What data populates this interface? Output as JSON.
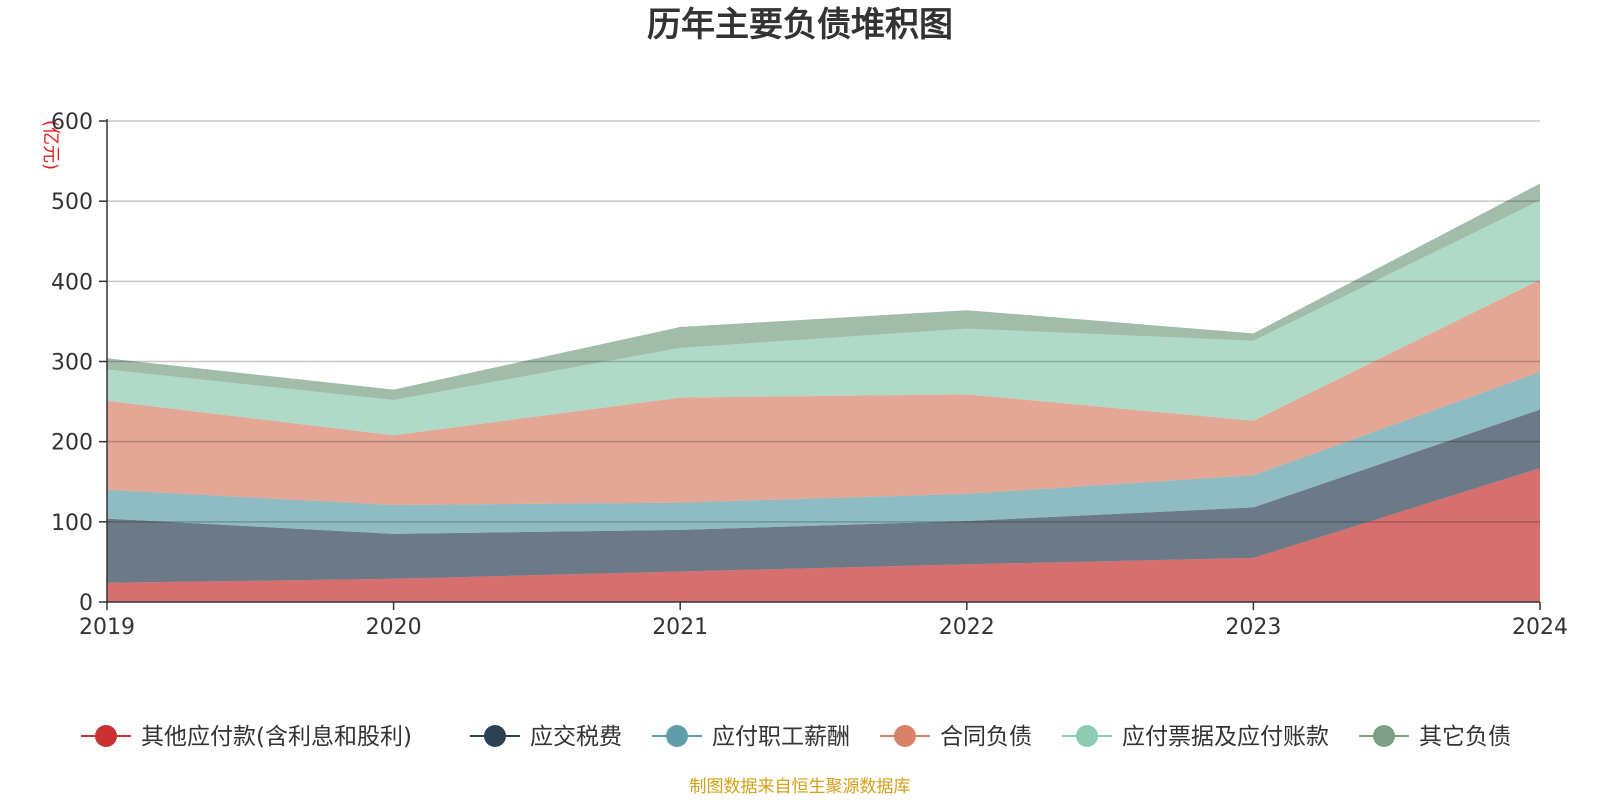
{
  "title": "历年主要负债堆积图",
  "source_note": "制图数据来自恒生聚源数据库",
  "chart_data": {
    "type": "area",
    "stacked": true,
    "title": "历年主要负债堆积图",
    "unit": "(亿元)",
    "categories": [
      "2019",
      "2020",
      "2021",
      "2022",
      "2023",
      "2024"
    ],
    "ylim": [
      0,
      600
    ],
    "yticks": [
      0,
      100,
      200,
      300,
      400,
      500,
      600
    ],
    "grid": true,
    "legend_position": "bottom",
    "series": [
      {
        "name": "其他应付款(含利息和股利)",
        "color": "#c83232",
        "values": [
          24,
          29,
          38,
          47,
          55,
          167
        ]
      },
      {
        "name": "应交税费",
        "color": "#2e4053",
        "values": [
          80,
          56,
          52,
          54,
          63,
          73
        ]
      },
      {
        "name": "应付职工薪酬",
        "color": "#5f9ea8",
        "values": [
          36,
          36,
          34,
          34,
          40,
          47
        ]
      },
      {
        "name": "合同负债",
        "color": "#d9826a",
        "values": [
          111,
          87,
          131,
          124,
          68,
          115
        ]
      },
      {
        "name": "应付票据及应付账款",
        "color": "#8fcbb0",
        "values": [
          39,
          44,
          62,
          82,
          100,
          99
        ]
      },
      {
        "name": "其它负债",
        "color": "#7aa086",
        "values": [
          14,
          13,
          26,
          23,
          9,
          21
        ]
      }
    ]
  }
}
